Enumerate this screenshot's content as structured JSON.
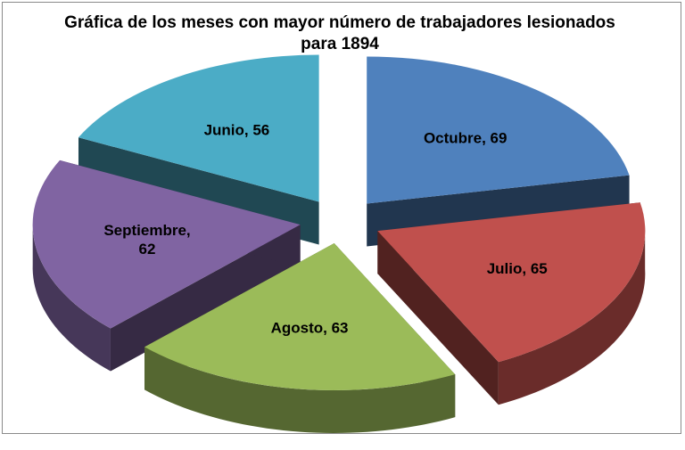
{
  "chart_data": {
    "type": "pie",
    "title": "Gráfica de los meses con mayor número de trabajadores lesionados para 1894",
    "title_lines": [
      "Gráfica de los meses con mayor número de trabajadores lesionados",
      "para 1894"
    ],
    "slices": [
      {
        "label": "Octubre",
        "value": 69,
        "text": "Octubre, 69",
        "color": "#4f81bd"
      },
      {
        "label": "Julio",
        "value": 65,
        "text": "Julio, 65",
        "color": "#c0504d"
      },
      {
        "label": "Agosto",
        "value": 63,
        "text": "Agosto, 63",
        "color": "#9bbb59"
      },
      {
        "label": "Septiembre",
        "value": 62,
        "text": "Septiembre, 62",
        "text_lines": [
          "Septiembre,",
          "62"
        ],
        "color": "#8064a2"
      },
      {
        "label": "Junio",
        "value": 56,
        "text": "Junio, 56",
        "color": "#4bacc6"
      }
    ],
    "style": "3d-exploded",
    "legend": "none"
  }
}
